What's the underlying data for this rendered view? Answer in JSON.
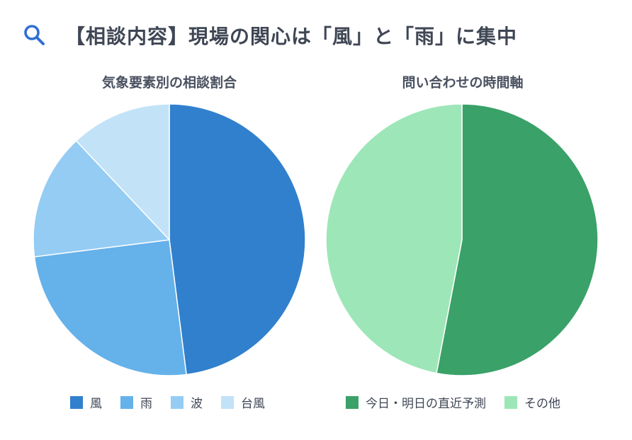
{
  "title": "【相談内容】現場の関心は「風」と「雨」に集中",
  "header_icon": "search-icon",
  "chart_data": [
    {
      "type": "pie",
      "title": "気象要素別の相談割合",
      "labels": [
        "風",
        "雨",
        "波",
        "台風"
      ],
      "values": [
        48,
        25,
        15,
        12
      ],
      "colors": [
        "#3180cd",
        "#65b1ea",
        "#94ccf3",
        "#c2e2f7"
      ],
      "legend_position": "bottom"
    },
    {
      "type": "pie",
      "title": "問い合わせの時間軸",
      "labels": [
        "今日・明日の直近予測",
        "その他"
      ],
      "values": [
        53,
        47
      ],
      "colors": [
        "#3aa169",
        "#9de6b8"
      ],
      "legend_position": "bottom"
    }
  ]
}
